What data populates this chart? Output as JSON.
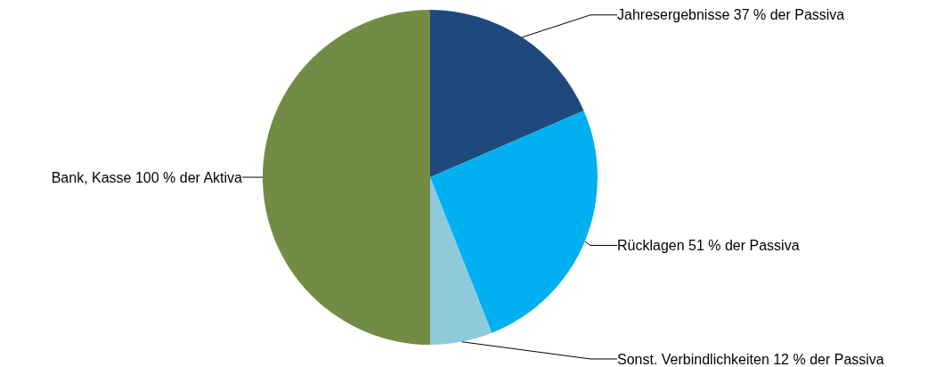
{
  "chart_data": {
    "type": "pie",
    "categories": [
      "Jahresergebnisse 37 % der Passiva",
      "Rücklagen 51 % der Passiva",
      "Sonst. Verbindlichkeiten 12 % der Passiva",
      "Bank, Kasse 100 % der Aktiva"
    ],
    "values": [
      37,
      51,
      12,
      100
    ],
    "colors": [
      "#1f497d",
      "#00b0f0",
      "#8ecadb",
      "#728c46"
    ]
  }
}
